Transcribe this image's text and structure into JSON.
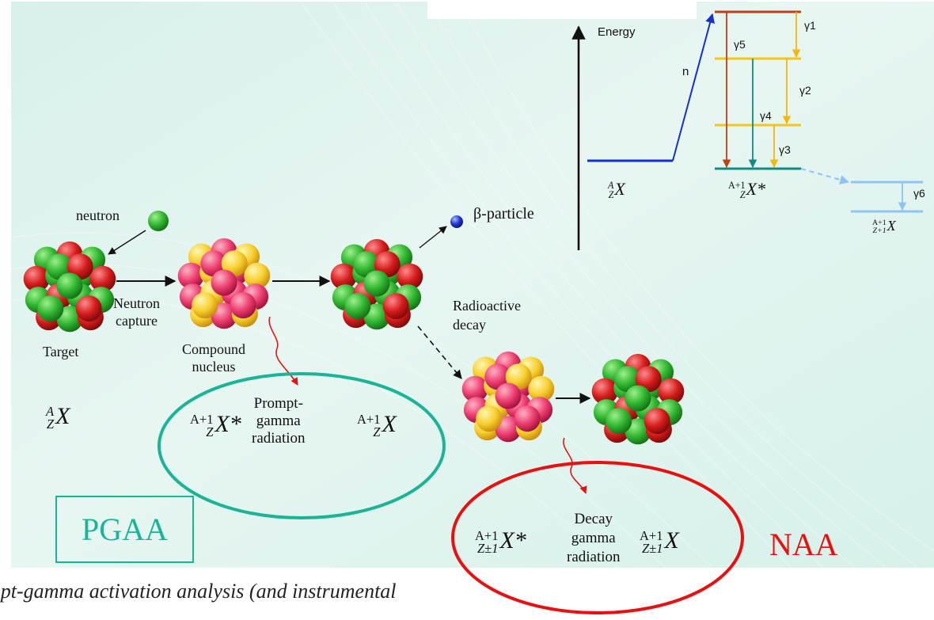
{
  "energy_diagram": {
    "axis_label": "Energy",
    "neutron_label": "n",
    "gammas": [
      "γ1",
      "γ2",
      "γ3",
      "γ4",
      "γ5",
      "γ6"
    ],
    "ground_formula": {
      "A": "A",
      "Z": "Z",
      "X": "X"
    },
    "excited_formula": {
      "A": "A+1",
      "Z": "Z",
      "X": "X*"
    },
    "decay_formula": {
      "A": "A+1",
      "Z": "Z+1",
      "X": "X"
    }
  },
  "process": {
    "neutron": "neutron",
    "beta": "β-particle",
    "neutron_capture": "Neutron\ncapture",
    "target": "Target",
    "compound_nucleus": "Compound\nnucleus",
    "radioactive_decay": "Radioactive\ndecay",
    "target_formula": {
      "A": "A",
      "Z": "Z",
      "X": "X"
    }
  },
  "pgaa": {
    "box_label": "PGAA",
    "formula_left": {
      "A": "A+1",
      "Z": "Z",
      "X": "X*"
    },
    "text": "Prompt-\ngamma\nradiation",
    "formula_right": {
      "A": "A+1",
      "Z": "Z",
      "X": "X"
    }
  },
  "naa": {
    "label": "NAA",
    "formula_left": {
      "A": "A+1",
      "Z": "Z±1",
      "X": "X*"
    },
    "text": "Decay\ngamma\nradiation",
    "formula_right": {
      "A": "A+1",
      "Z": "Z±1",
      "X": "X"
    }
  },
  "caption": "mpt-gamma activation analysis (and instrumental",
  "colors": {
    "pgaa": "#1ab496",
    "naa": "#e81010",
    "green": "#2aa52a",
    "red": "#cc1a1a",
    "yellow": "#f5c518",
    "pink": "#e8356a",
    "blue": "#1530d0"
  }
}
